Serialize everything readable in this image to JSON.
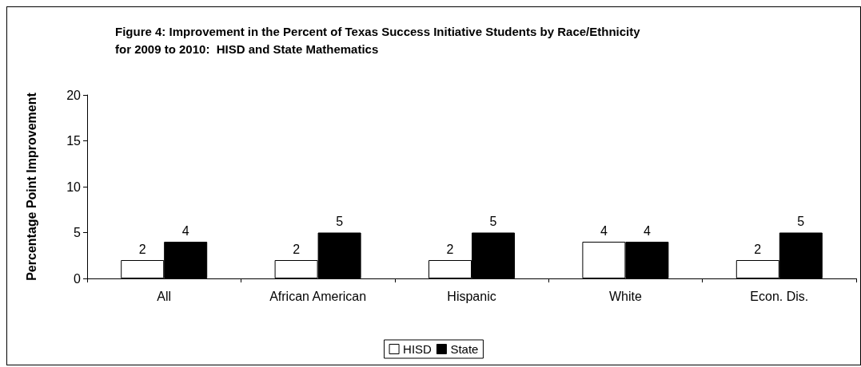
{
  "chart_data": {
    "type": "bar",
    "title": "Figure 4: Improvement in the Percent of Texas Success Initiative Students by Race/Ethnicity for 2009 to 2010:  HISD and State Mathematics",
    "ylabel": "Percentage Point Improvement",
    "categories": [
      "All",
      "African American",
      "Hispanic",
      "White",
      "Econ. Dis."
    ],
    "series": [
      {
        "name": "HISD",
        "color": "#ffffff",
        "values": [
          2,
          2,
          2,
          4,
          2
        ]
      },
      {
        "name": "State",
        "color": "#000000",
        "values": [
          4,
          5,
          5,
          4,
          5
        ]
      }
    ],
    "ylim": [
      0,
      20
    ],
    "yticks": [
      0,
      5,
      10,
      15,
      20
    ],
    "data_labels": true,
    "grid": false,
    "legend": "bottom"
  }
}
